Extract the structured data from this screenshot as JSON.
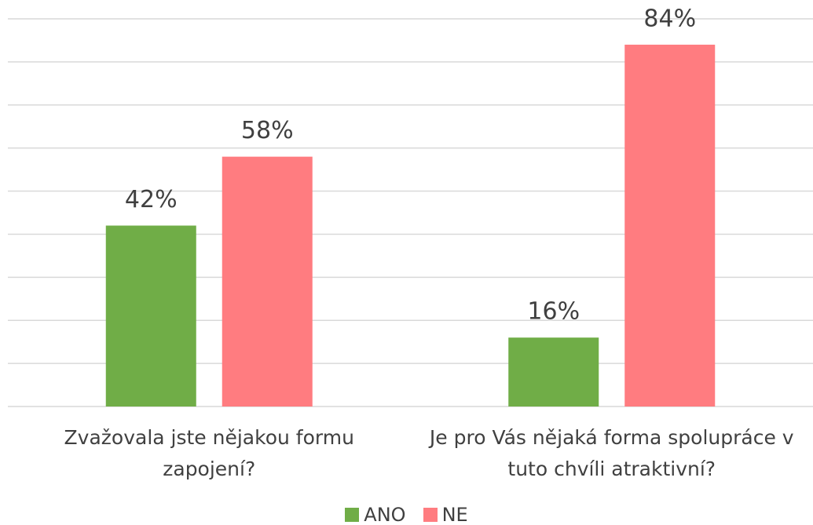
{
  "chart_data": {
    "type": "bar",
    "categories": [
      "Zvažovala jste nějakou formu zapojení?",
      "Je pro Vás nějaká forma spolupráce v tuto chvíli atraktivní?"
    ],
    "series": [
      {
        "name": "ANO",
        "color": "#70ad47",
        "values": [
          42,
          16
        ],
        "value_labels": [
          "42%",
          "16%"
        ]
      },
      {
        "name": "NE",
        "color": "#ff7c80",
        "values": [
          58,
          84
        ],
        "value_labels": [
          "58%",
          "84%"
        ]
      }
    ],
    "ylim": [
      0,
      90
    ],
    "yticks": [
      0,
      10,
      20,
      30,
      40,
      50,
      60,
      70,
      80,
      90
    ],
    "grid": true,
    "legend": "bottom"
  }
}
